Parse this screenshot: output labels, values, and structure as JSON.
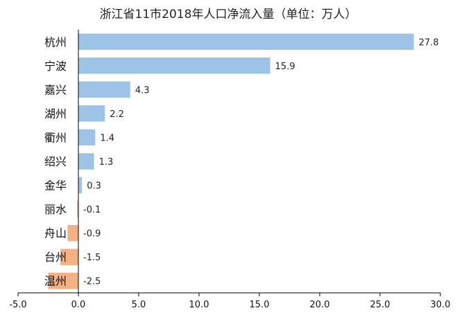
{
  "chart_data": {
    "type": "bar",
    "orientation": "horizontal",
    "title": "浙江省11市2018年人口净流入量（单位：万人）",
    "categories": [
      "杭州",
      "宁波",
      "嘉兴",
      "湖州",
      "衢州",
      "绍兴",
      "金华",
      "丽水",
      "舟山",
      "台州",
      "温州"
    ],
    "values": [
      27.8,
      15.9,
      4.3,
      2.2,
      1.4,
      1.3,
      0.3,
      -0.1,
      -0.9,
      -1.5,
      -2.5
    ],
    "value_labels": [
      "27.8",
      "15.9",
      "4.3",
      "2.2",
      "1.4",
      "1.3",
      "0.3",
      "-0.1",
      "-0.9",
      "-1.5",
      "-2.5"
    ],
    "xlim": [
      -5.0,
      30.0
    ],
    "xticks": [
      -5.0,
      0.0,
      5.0,
      10.0,
      15.0,
      20.0,
      25.0,
      30.0
    ],
    "xtick_labels": [
      "-5.0",
      "0.0",
      "5.0",
      "10.0",
      "15.0",
      "20.0",
      "25.0",
      "30.0"
    ],
    "xlabel": "",
    "ylabel": "",
    "grid": false,
    "legend": "none",
    "colors": {
      "positive": "#9dc3e6",
      "negative": "#f4b183",
      "axis": "#000000"
    }
  }
}
